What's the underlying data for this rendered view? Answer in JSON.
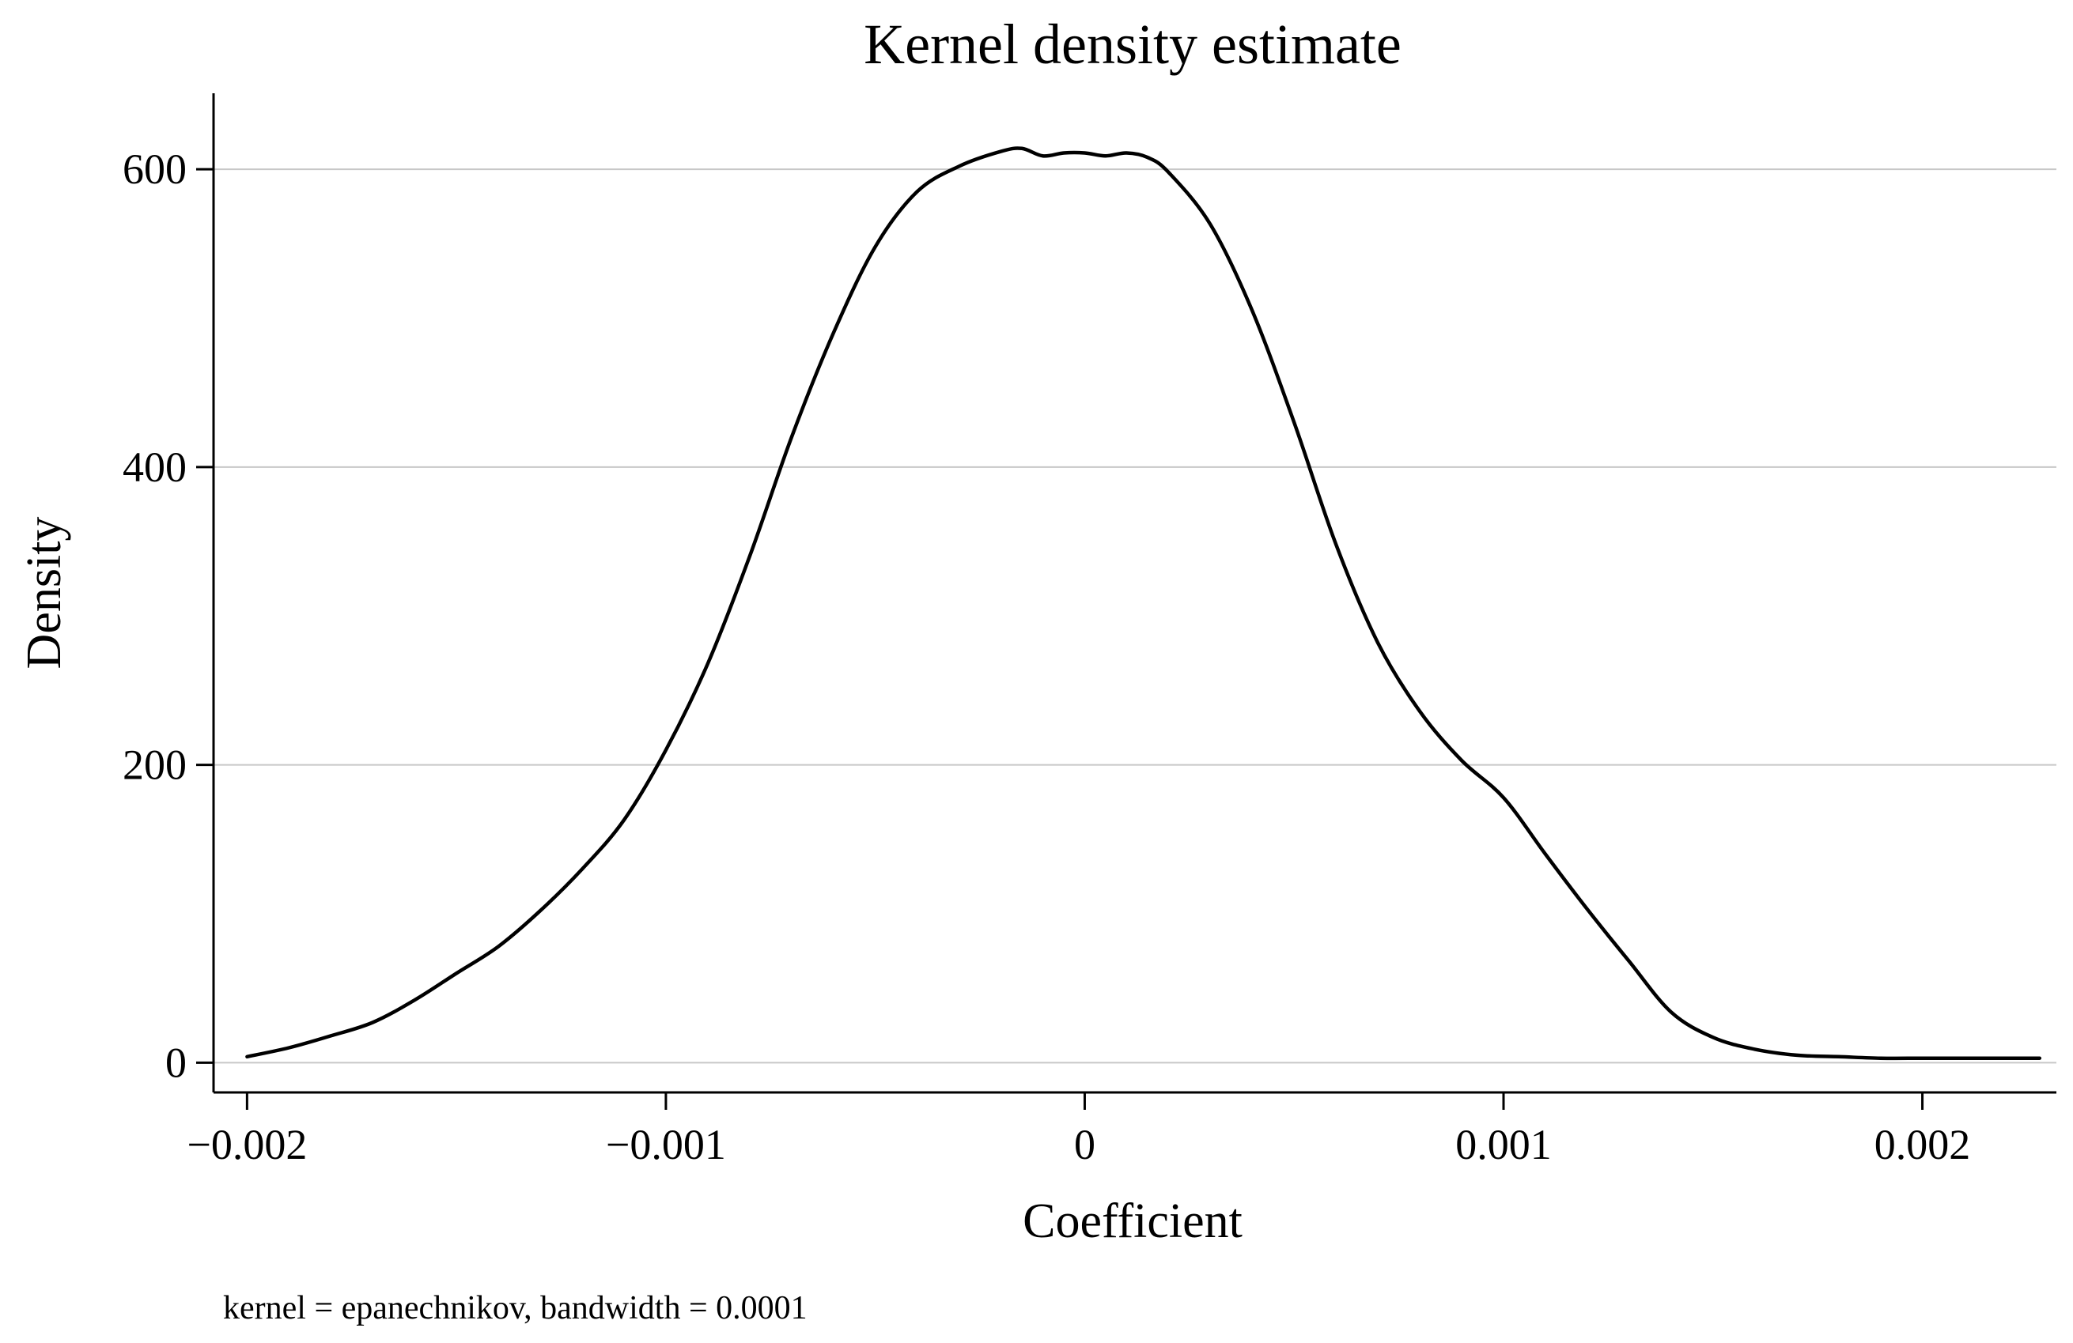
{
  "chart_data": {
    "type": "line",
    "title": "Kernel density estimate",
    "xlabel": "Coefficient",
    "ylabel": "Density",
    "note": "kernel = epanechnikov, bandwidth = 0.0001",
    "xlim": [
      -0.00208,
      0.00232
    ],
    "ylim": [
      -20,
      650
    ],
    "xticks": [
      -0.002,
      -0.001,
      0,
      0.001,
      0.002
    ],
    "xtick_labels": [
      "−0.002",
      "−0.001",
      "0",
      "0.001",
      "0.002"
    ],
    "yticks": [
      0,
      200,
      400,
      600
    ],
    "ytick_labels": [
      "0",
      "200",
      "400",
      "600"
    ],
    "grid": true,
    "legend": "none",
    "line_color": "#000000",
    "grid_color": "#c8c8c8",
    "series": [
      {
        "x": [
          -0.002,
          -0.0019,
          -0.0018,
          -0.0017,
          -0.0016,
          -0.0015,
          -0.0014,
          -0.0013,
          -0.0012,
          -0.0011,
          -0.001,
          -0.0009,
          -0.0008,
          -0.0007,
          -0.0006,
          -0.0005,
          -0.0004,
          -0.0003,
          -0.0002,
          -0.00015,
          -0.0001,
          -5e-05,
          0,
          5e-05,
          0.0001,
          0.00015,
          0.0002,
          0.0003,
          0.0004,
          0.0005,
          0.0006,
          0.0007,
          0.0008,
          0.0009,
          0.001,
          0.0011,
          0.0012,
          0.0013,
          0.0014,
          0.0015,
          0.0016,
          0.0017,
          0.0018,
          0.0019,
          0.002,
          0.0021,
          0.0022,
          0.00228
        ],
        "y": [
          4,
          10,
          18,
          27,
          42,
          60,
          78,
          102,
          130,
          163,
          210,
          268,
          340,
          420,
          490,
          548,
          585,
          602,
          612,
          614,
          609,
          611,
          611,
          609,
          611,
          608,
          598,
          563,
          505,
          430,
          348,
          282,
          236,
          203,
          178,
          140,
          103,
          68,
          34,
          17,
          9,
          5,
          4,
          3,
          3,
          3,
          3,
          3
        ]
      }
    ]
  }
}
